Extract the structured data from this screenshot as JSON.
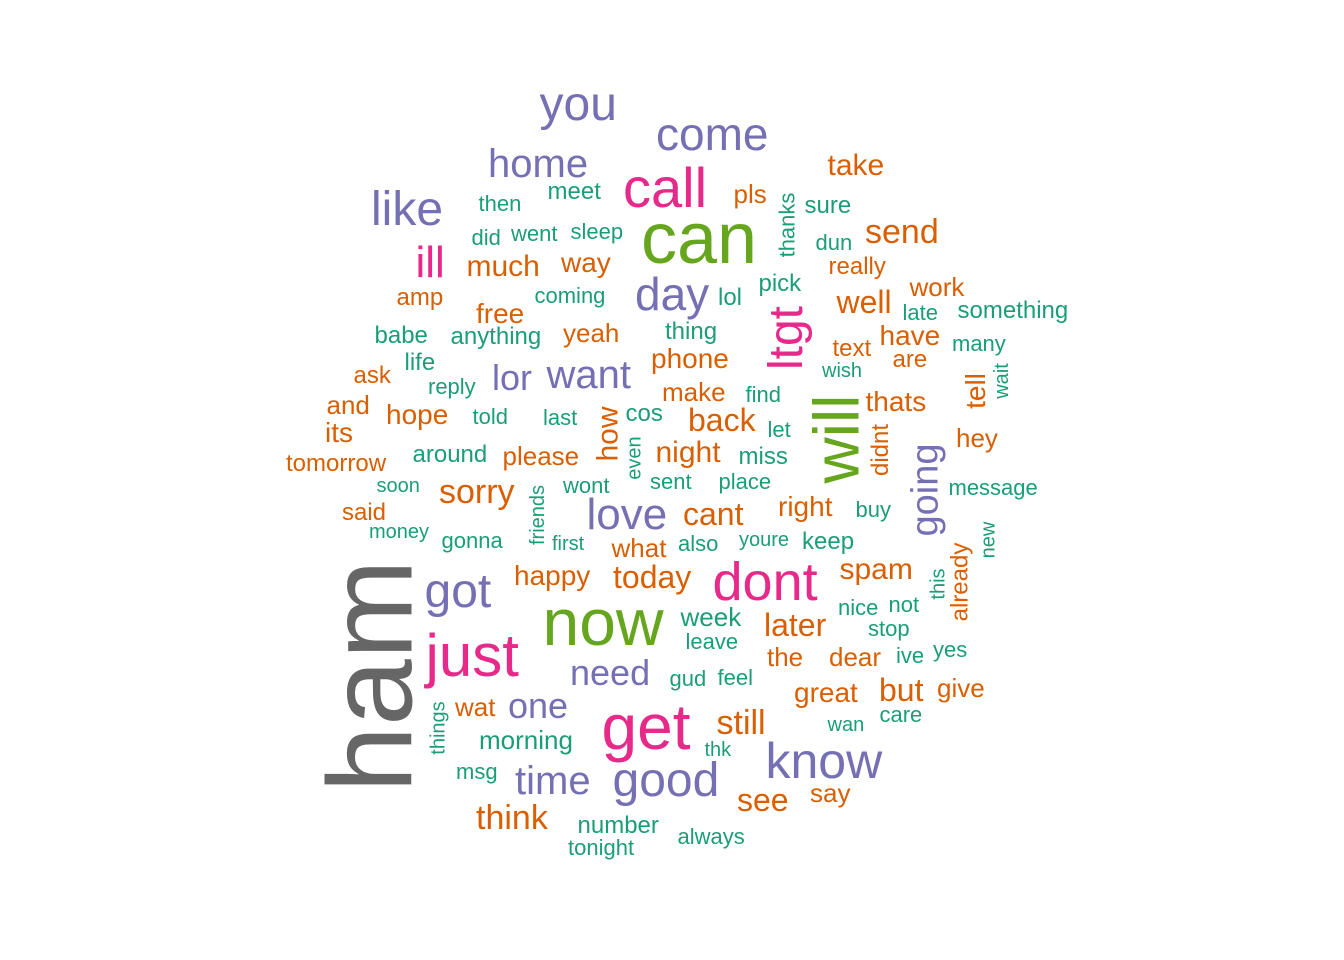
{
  "colors": {
    "gray": "#666666",
    "green": "#66a61e",
    "magenta": "#e7298a",
    "purple": "#7570b3",
    "orange": "#d95f02",
    "teal": "#1b9e77"
  },
  "words": [
    {
      "text": "ham",
      "color": "gray",
      "rotated": true
    },
    {
      "text": "can",
      "color": "green"
    },
    {
      "text": "now",
      "color": "green"
    },
    {
      "text": "will",
      "color": "green",
      "rotated": true
    },
    {
      "text": "call",
      "color": "magenta"
    },
    {
      "text": "get",
      "color": "magenta"
    },
    {
      "text": "just",
      "color": "magenta"
    },
    {
      "text": "dont",
      "color": "magenta"
    },
    {
      "text": "ltgt",
      "color": "magenta",
      "rotated": true
    },
    {
      "text": "ill",
      "color": "magenta"
    },
    {
      "text": "you",
      "color": "purple"
    },
    {
      "text": "come",
      "color": "purple"
    },
    {
      "text": "home",
      "color": "purple"
    },
    {
      "text": "like",
      "color": "purple"
    },
    {
      "text": "day",
      "color": "purple"
    },
    {
      "text": "want",
      "color": "purple"
    },
    {
      "text": "lor",
      "color": "purple"
    },
    {
      "text": "love",
      "color": "purple"
    },
    {
      "text": "got",
      "color": "purple"
    },
    {
      "text": "need",
      "color": "purple"
    },
    {
      "text": "one",
      "color": "purple"
    },
    {
      "text": "time",
      "color": "purple"
    },
    {
      "text": "good",
      "color": "purple"
    },
    {
      "text": "know",
      "color": "purple"
    },
    {
      "text": "going",
      "color": "purple",
      "rotated": true
    },
    {
      "text": "how",
      "color": "orange",
      "rotated": true
    },
    {
      "text": "take",
      "color": "orange"
    },
    {
      "text": "pls",
      "color": "orange"
    },
    {
      "text": "send",
      "color": "orange"
    },
    {
      "text": "really",
      "color": "orange"
    },
    {
      "text": "much",
      "color": "orange"
    },
    {
      "text": "way",
      "color": "orange"
    },
    {
      "text": "amp",
      "color": "orange"
    },
    {
      "text": "free",
      "color": "orange"
    },
    {
      "text": "work",
      "color": "orange"
    },
    {
      "text": "well",
      "color": "orange"
    },
    {
      "text": "yeah",
      "color": "orange"
    },
    {
      "text": "phone",
      "color": "orange"
    },
    {
      "text": "have",
      "color": "orange"
    },
    {
      "text": "text",
      "color": "orange"
    },
    {
      "text": "are",
      "color": "orange"
    },
    {
      "text": "ask",
      "color": "orange"
    },
    {
      "text": "and",
      "color": "orange"
    },
    {
      "text": "hope",
      "color": "orange"
    },
    {
      "text": "its",
      "color": "orange"
    },
    {
      "text": "make",
      "color": "orange"
    },
    {
      "text": "back",
      "color": "orange"
    },
    {
      "text": "thats",
      "color": "orange"
    },
    {
      "text": "tell",
      "color": "orange",
      "rotated": true
    },
    {
      "text": "hey",
      "color": "orange"
    },
    {
      "text": "please",
      "color": "orange"
    },
    {
      "text": "night",
      "color": "orange"
    },
    {
      "text": "tomorrow",
      "color": "orange"
    },
    {
      "text": "sorry",
      "color": "orange"
    },
    {
      "text": "said",
      "color": "orange"
    },
    {
      "text": "cant",
      "color": "orange"
    },
    {
      "text": "right",
      "color": "orange"
    },
    {
      "text": "what",
      "color": "orange"
    },
    {
      "text": "didnt",
      "color": "orange",
      "rotated": true
    },
    {
      "text": "happy",
      "color": "orange"
    },
    {
      "text": "today",
      "color": "orange"
    },
    {
      "text": "spam",
      "color": "orange"
    },
    {
      "text": "already",
      "color": "orange",
      "rotated": true
    },
    {
      "text": "later",
      "color": "orange"
    },
    {
      "text": "the",
      "color": "orange"
    },
    {
      "text": "dear",
      "color": "orange"
    },
    {
      "text": "wat",
      "color": "orange"
    },
    {
      "text": "great",
      "color": "orange"
    },
    {
      "text": "but",
      "color": "orange"
    },
    {
      "text": "give",
      "color": "orange"
    },
    {
      "text": "still",
      "color": "orange"
    },
    {
      "text": "see",
      "color": "orange"
    },
    {
      "text": "say",
      "color": "orange"
    },
    {
      "text": "think",
      "color": "orange"
    },
    {
      "text": "then",
      "color": "teal"
    },
    {
      "text": "meet",
      "color": "teal"
    },
    {
      "text": "did",
      "color": "teal"
    },
    {
      "text": "went",
      "color": "teal"
    },
    {
      "text": "sleep",
      "color": "teal"
    },
    {
      "text": "thanks",
      "color": "teal",
      "rotated": true
    },
    {
      "text": "sure",
      "color": "teal"
    },
    {
      "text": "dun",
      "color": "teal"
    },
    {
      "text": "coming",
      "color": "teal"
    },
    {
      "text": "lol",
      "color": "teal"
    },
    {
      "text": "pick",
      "color": "teal"
    },
    {
      "text": "late",
      "color": "teal"
    },
    {
      "text": "something",
      "color": "teal"
    },
    {
      "text": "babe",
      "color": "teal"
    },
    {
      "text": "anything",
      "color": "teal"
    },
    {
      "text": "thing",
      "color": "teal"
    },
    {
      "text": "many",
      "color": "teal"
    },
    {
      "text": "life",
      "color": "teal"
    },
    {
      "text": "wish",
      "color": "teal"
    },
    {
      "text": "wait",
      "color": "teal",
      "rotated": true
    },
    {
      "text": "reply",
      "color": "teal"
    },
    {
      "text": "find",
      "color": "teal"
    },
    {
      "text": "told",
      "color": "teal"
    },
    {
      "text": "last",
      "color": "teal"
    },
    {
      "text": "cos",
      "color": "teal"
    },
    {
      "text": "let",
      "color": "teal"
    },
    {
      "text": "even",
      "color": "teal",
      "rotated": true
    },
    {
      "text": "around",
      "color": "teal"
    },
    {
      "text": "miss",
      "color": "teal"
    },
    {
      "text": "soon",
      "color": "teal"
    },
    {
      "text": "wont",
      "color": "teal"
    },
    {
      "text": "sent",
      "color": "teal"
    },
    {
      "text": "place",
      "color": "teal"
    },
    {
      "text": "message",
      "color": "teal"
    },
    {
      "text": "friends",
      "color": "teal",
      "rotated": true
    },
    {
      "text": "buy",
      "color": "teal"
    },
    {
      "text": "money",
      "color": "teal"
    },
    {
      "text": "gonna",
      "color": "teal"
    },
    {
      "text": "first",
      "color": "teal"
    },
    {
      "text": "also",
      "color": "teal"
    },
    {
      "text": "youre",
      "color": "teal"
    },
    {
      "text": "keep",
      "color": "teal"
    },
    {
      "text": "new",
      "color": "teal",
      "rotated": true
    },
    {
      "text": "this",
      "color": "teal",
      "rotated": true
    },
    {
      "text": "nice",
      "color": "teal"
    },
    {
      "text": "not",
      "color": "teal"
    },
    {
      "text": "week",
      "color": "teal"
    },
    {
      "text": "stop",
      "color": "teal"
    },
    {
      "text": "leave",
      "color": "teal"
    },
    {
      "text": "ive",
      "color": "teal"
    },
    {
      "text": "yes",
      "color": "teal"
    },
    {
      "text": "gud",
      "color": "teal"
    },
    {
      "text": "feel",
      "color": "teal"
    },
    {
      "text": "things",
      "color": "teal",
      "rotated": true
    },
    {
      "text": "care",
      "color": "teal"
    },
    {
      "text": "wan",
      "color": "teal"
    },
    {
      "text": "morning",
      "color": "teal"
    },
    {
      "text": "thk",
      "color": "teal"
    },
    {
      "text": "msg",
      "color": "teal"
    },
    {
      "text": "number",
      "color": "teal"
    },
    {
      "text": "always",
      "color": "teal"
    },
    {
      "text": "tonight",
      "color": "teal"
    }
  ]
}
